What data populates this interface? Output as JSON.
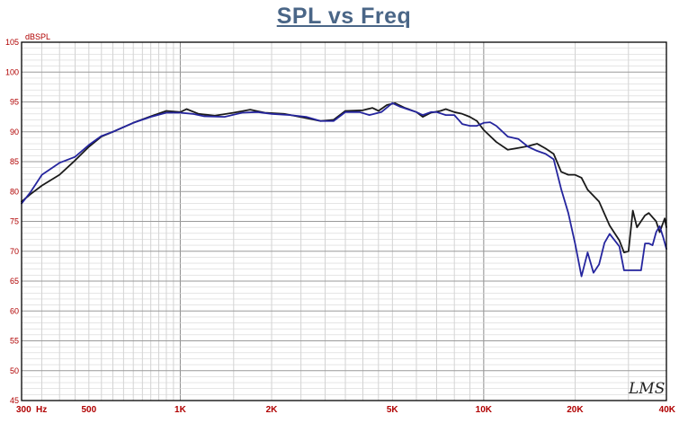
{
  "chart_data": {
    "type": "line",
    "title": "SPL vs Freq",
    "xlabel": "Hz",
    "ylabel": "dBSPL",
    "xscale": "log",
    "xlim": [
      300,
      40000
    ],
    "ylim": [
      45,
      105
    ],
    "yticks": [
      45,
      50,
      55,
      60,
      65,
      70,
      75,
      80,
      85,
      90,
      95,
      100,
      105
    ],
    "xticks": [
      {
        "value": 300,
        "label": "300"
      },
      {
        "value": 500,
        "label": "500"
      },
      {
        "value": 1000,
        "label": "1K"
      },
      {
        "value": 2000,
        "label": "2K"
      },
      {
        "value": 5000,
        "label": "5K"
      },
      {
        "value": 10000,
        "label": "10K"
      },
      {
        "value": 20000,
        "label": "20K"
      },
      {
        "value": 40000,
        "label": "40K"
      }
    ],
    "grid": true,
    "watermark": "LMS",
    "series": [
      {
        "color": "#1a1a1a",
        "points": [
          [
            300,
            78.3
          ],
          [
            320,
            79.5
          ],
          [
            350,
            81
          ],
          [
            400,
            82.8
          ],
          [
            450,
            85.2
          ],
          [
            500,
            87.5
          ],
          [
            550,
            89.2
          ],
          [
            600,
            90
          ],
          [
            700,
            91.5
          ],
          [
            800,
            92.6
          ],
          [
            900,
            93.5
          ],
          [
            1000,
            93.3
          ],
          [
            1050,
            93.8
          ],
          [
            1150,
            93
          ],
          [
            1300,
            92.7
          ],
          [
            1500,
            93.2
          ],
          [
            1700,
            93.7
          ],
          [
            1900,
            93.2
          ],
          [
            2200,
            93
          ],
          [
            2600,
            92.3
          ],
          [
            2900,
            91.8
          ],
          [
            3200,
            92
          ],
          [
            3500,
            93.5
          ],
          [
            4000,
            93.6
          ],
          [
            4300,
            94
          ],
          [
            4500,
            93.5
          ],
          [
            4800,
            94.5
          ],
          [
            5100,
            94.8
          ],
          [
            5500,
            94
          ],
          [
            6000,
            93.3
          ],
          [
            6300,
            92.5
          ],
          [
            6700,
            93.2
          ],
          [
            7200,
            93.5
          ],
          [
            7500,
            93.8
          ],
          [
            8000,
            93.3
          ],
          [
            8500,
            93
          ],
          [
            9000,
            92.5
          ],
          [
            9500,
            91.8
          ],
          [
            10000,
            90.3
          ],
          [
            11000,
            88.3
          ],
          [
            12000,
            87
          ],
          [
            13000,
            87.3
          ],
          [
            14000,
            87.6
          ],
          [
            15000,
            88
          ],
          [
            16000,
            87.2
          ],
          [
            17000,
            86.3
          ],
          [
            18000,
            83.3
          ],
          [
            19000,
            82.8
          ],
          [
            20000,
            82.8
          ],
          [
            21000,
            82.3
          ],
          [
            22000,
            80.3
          ],
          [
            24000,
            78.3
          ],
          [
            26000,
            74.3
          ],
          [
            28000,
            71.8
          ],
          [
            29000,
            69.8
          ],
          [
            30000,
            70
          ],
          [
            31000,
            76.8
          ],
          [
            32000,
            74
          ],
          [
            34000,
            76
          ],
          [
            35000,
            76.4
          ],
          [
            37000,
            75
          ],
          [
            38000,
            73.2
          ],
          [
            39500,
            75.5
          ],
          [
            40000,
            74
          ]
        ]
      },
      {
        "color": "#25259e",
        "points": [
          [
            300,
            78
          ],
          [
            320,
            79.8
          ],
          [
            350,
            82.8
          ],
          [
            400,
            84.8
          ],
          [
            450,
            85.8
          ],
          [
            500,
            87.8
          ],
          [
            550,
            89.3
          ],
          [
            600,
            90
          ],
          [
            700,
            91.5
          ],
          [
            800,
            92.5
          ],
          [
            900,
            93.2
          ],
          [
            1000,
            93.2
          ],
          [
            1100,
            93
          ],
          [
            1200,
            92.6
          ],
          [
            1400,
            92.5
          ],
          [
            1600,
            93.2
          ],
          [
            1800,
            93.3
          ],
          [
            2000,
            93
          ],
          [
            2300,
            92.8
          ],
          [
            2600,
            92.5
          ],
          [
            2900,
            91.8
          ],
          [
            3200,
            91.8
          ],
          [
            3500,
            93.3
          ],
          [
            3900,
            93.3
          ],
          [
            4200,
            92.8
          ],
          [
            4600,
            93.3
          ],
          [
            5000,
            94.8
          ],
          [
            5300,
            94.2
          ],
          [
            5600,
            93.8
          ],
          [
            6000,
            93.3
          ],
          [
            6300,
            92.8
          ],
          [
            6700,
            93.3
          ],
          [
            7000,
            93.3
          ],
          [
            7500,
            92.8
          ],
          [
            8000,
            92.8
          ],
          [
            8500,
            91.3
          ],
          [
            9000,
            91
          ],
          [
            9500,
            91
          ],
          [
            10000,
            91.5
          ],
          [
            10500,
            91.6
          ],
          [
            11000,
            91
          ],
          [
            12000,
            89.2
          ],
          [
            13000,
            88.8
          ],
          [
            14000,
            87.5
          ],
          [
            15000,
            86.8
          ],
          [
            16000,
            86.3
          ],
          [
            17000,
            85.4
          ],
          [
            18000,
            80.4
          ],
          [
            19000,
            76.4
          ],
          [
            20000,
            71.3
          ],
          [
            21000,
            65.8
          ],
          [
            22000,
            69.8
          ],
          [
            23000,
            66.4
          ],
          [
            24000,
            67.8
          ],
          [
            25000,
            71.4
          ],
          [
            26000,
            72.9
          ],
          [
            28000,
            70.8
          ],
          [
            29000,
            66.8
          ],
          [
            31000,
            66.8
          ],
          [
            33000,
            66.8
          ],
          [
            34000,
            71.3
          ],
          [
            35000,
            71.3
          ],
          [
            36000,
            71
          ],
          [
            37000,
            73.2
          ],
          [
            38000,
            74.2
          ],
          [
            39000,
            72.4
          ],
          [
            40000,
            70.4
          ]
        ]
      }
    ]
  }
}
